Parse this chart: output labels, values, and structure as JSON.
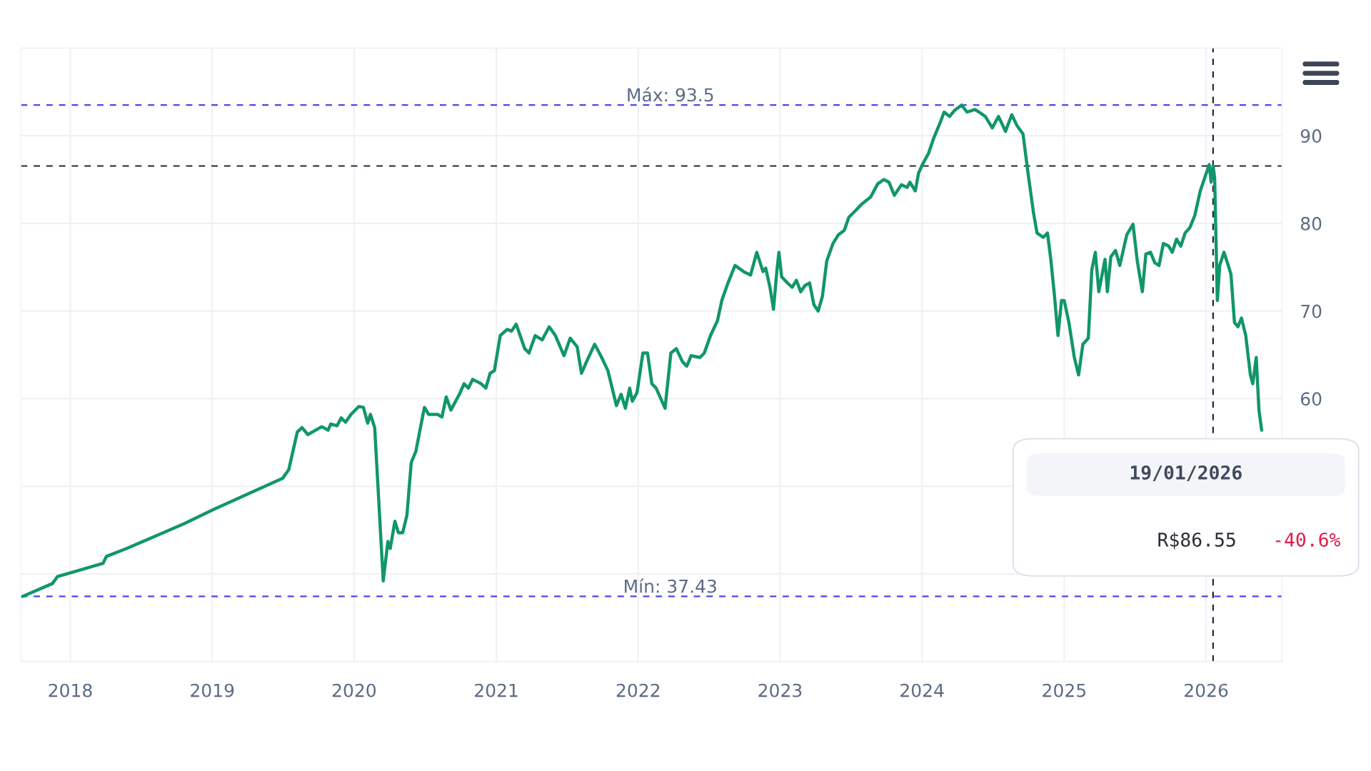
{
  "chart_data": {
    "type": "line",
    "x": [
      "2017-08-31",
      "2017-11-16",
      "2017-11-29",
      "2018-03-26",
      "2018-04-04",
      "2018-05-26",
      "2018-10-19",
      "2019-01-07",
      "2019-07-01",
      "2019-07-17",
      "2019-08-08",
      "2019-08-20",
      "2019-09-04",
      "2019-10-10",
      "2019-10-26",
      "2019-11-02",
      "2019-11-18",
      "2019-11-29",
      "2019-12-10",
      "2019-12-24",
      "2020-01-13",
      "2020-01-25",
      "2020-02-05",
      "2020-02-12",
      "2020-02-23",
      "2020-03-16",
      "2020-03-28",
      "2020-04-03",
      "2020-04-15",
      "2020-04-24",
      "2020-05-05",
      "2020-05-16",
      "2020-05-27",
      "2020-06-08",
      "2020-06-30",
      "2020-07-11",
      "2020-08-03",
      "2020-08-14",
      "2020-08-25",
      "2020-09-06",
      "2020-09-28",
      "2020-10-10",
      "2020-10-21",
      "2020-11-01",
      "2020-11-23",
      "2020-12-05",
      "2020-12-16",
      "2020-12-27",
      "2021-01-11",
      "2021-01-29",
      "2021-02-09",
      "2021-02-21",
      "2021-03-15",
      "2021-03-26",
      "2021-04-11",
      "2021-04-29",
      "2021-05-17",
      "2021-06-02",
      "2021-06-24",
      "2021-07-10",
      "2021-07-28",
      "2021-08-08",
      "2021-08-24",
      "2021-09-11",
      "2021-09-29",
      "2021-10-15",
      "2021-11-06",
      "2021-11-18",
      "2021-11-29",
      "2021-12-10",
      "2021-12-17",
      "2021-12-29",
      "2022-01-13",
      "2022-01-25",
      "2022-02-05",
      "2022-02-16",
      "2022-03-11",
      "2022-03-26",
      "2022-04-09",
      "2022-04-25",
      "2022-05-06",
      "2022-05-17",
      "2022-06-09",
      "2022-06-20",
      "2022-07-06",
      "2022-07-24",
      "2022-08-04",
      "2022-08-20",
      "2022-09-07",
      "2022-09-29",
      "2022-10-17",
      "2022-11-02",
      "2022-11-18",
      "2022-11-25",
      "2022-12-06",
      "2022-12-15",
      "2022-12-24",
      "2022-12-29",
      "2023-01-05",
      "2023-01-20",
      "2023-02-01",
      "2023-02-12",
      "2023-02-23",
      "2023-03-06",
      "2023-03-18",
      "2023-03-29",
      "2023-04-09",
      "2023-04-20",
      "2023-05-01",
      "2023-05-17",
      "2023-05-31",
      "2023-06-15",
      "2023-06-27",
      "2023-07-15",
      "2023-07-30",
      "2023-08-22",
      "2023-09-09",
      "2023-09-25",
      "2023-10-08",
      "2023-10-22",
      "2023-11-09",
      "2023-11-24",
      "2023-12-01",
      "2023-12-15",
      "2023-12-23",
      "2024-01-02",
      "2024-01-18",
      "2024-01-31",
      "2024-02-16",
      "2024-02-27",
      "2024-03-12",
      "2024-03-25",
      "2024-04-12",
      "2024-04-26",
      "2024-05-16",
      "2024-05-27",
      "2024-06-12",
      "2024-06-30",
      "2024-07-16",
      "2024-08-03",
      "2024-08-19",
      "2024-09-01",
      "2024-09-17",
      "2024-09-30",
      "2024-10-14",
      "2024-10-23",
      "2024-11-08",
      "2024-11-19",
      "2024-11-28",
      "2024-12-07",
      "2024-12-16",
      "2024-12-25",
      "2025-01-01",
      "2025-01-13",
      "2025-01-27",
      "2025-02-07",
      "2025-02-18",
      "2025-03-04",
      "2025-03-13",
      "2025-03-22",
      "2025-03-31",
      "2025-04-16",
      "2025-04-22",
      "2025-05-01",
      "2025-05-13",
      "2025-05-24",
      "2025-06-11",
      "2025-06-27",
      "2025-07-08",
      "2025-07-21",
      "2025-07-30",
      "2025-08-11",
      "2025-08-22",
      "2025-09-02",
      "2025-09-13",
      "2025-09-27",
      "2025-10-06",
      "2025-10-17",
      "2025-10-28",
      "2025-11-08",
      "2025-11-20",
      "2025-12-03",
      "2025-12-17",
      "2026-01-09",
      "2026-01-14",
      "2026-01-19",
      "2026-01-23",
      "2026-01-30",
      "2026-02-05",
      "2026-02-16",
      "2026-02-27",
      "2026-03-06",
      "2026-03-15",
      "2026-03-24",
      "2026-04-02",
      "2026-04-13",
      "2026-04-25",
      "2026-05-01",
      "2026-05-10",
      "2026-05-17",
      "2026-05-24"
    ],
    "series": [
      {
        "color": "#11966a",
        "values": [
          37.43,
          38.9,
          39.7,
          41.2,
          42.0,
          42.9,
          45.7,
          47.4,
          50.9,
          51.9,
          56.2,
          56.7,
          55.9,
          56.8,
          56.4,
          57.1,
          56.9,
          57.8,
          57.3,
          58.2,
          59.1,
          59.0,
          57.2,
          58.2,
          56.7,
          39.2,
          43.7,
          42.9,
          46.0,
          44.7,
          44.7,
          46.7,
          52.7,
          54.0,
          59.0,
          58.2,
          58.2,
          57.9,
          60.2,
          58.7,
          60.5,
          61.7,
          61.2,
          62.2,
          61.7,
          61.2,
          62.9,
          63.2,
          67.2,
          67.9,
          67.7,
          68.5,
          65.7,
          65.2,
          67.2,
          66.7,
          68.2,
          67.2,
          64.9,
          66.9,
          65.9,
          62.9,
          64.5,
          66.2,
          64.7,
          63.2,
          59.2,
          60.5,
          58.9,
          61.2,
          59.7,
          60.7,
          65.2,
          65.2,
          61.7,
          61.2,
          58.9,
          65.2,
          65.7,
          64.2,
          63.7,
          64.9,
          64.7,
          65.2,
          67.2,
          68.9,
          71.2,
          73.2,
          75.2,
          74.5,
          74.1,
          76.7,
          74.5,
          74.9,
          72.7,
          70.2,
          74.7,
          76.7,
          73.9,
          73.2,
          72.7,
          73.5,
          72.2,
          72.9,
          73.2,
          70.7,
          70.0,
          71.7,
          75.7,
          77.7,
          78.7,
          79.2,
          80.7,
          81.5,
          82.2,
          83.0,
          84.5,
          85.0,
          84.7,
          83.2,
          84.4,
          84.1,
          84.7,
          83.7,
          85.7,
          86.7,
          88.0,
          89.7,
          91.4,
          92.7,
          92.2,
          92.9,
          93.5,
          92.7,
          93.0,
          92.7,
          92.2,
          90.9,
          92.2,
          90.5,
          92.4,
          91.2,
          90.2,
          85.7,
          81.2,
          78.9,
          78.4,
          78.9,
          75.7,
          71.7,
          67.2,
          71.2,
          71.2,
          68.7,
          64.7,
          62.7,
          66.2,
          66.9,
          74.7,
          76.7,
          72.2,
          75.9,
          72.2,
          76.2,
          76.9,
          75.2,
          78.7,
          79.9,
          75.7,
          72.2,
          76.5,
          76.7,
          75.5,
          75.2,
          77.7,
          77.4,
          76.7,
          78.2,
          77.4,
          78.9,
          79.5,
          80.9,
          83.7,
          86.7,
          84.7,
          86.55,
          85.2,
          71.2,
          75.2,
          76.7,
          75.2,
          74.2,
          68.7,
          68.2,
          69.2,
          67.2,
          62.7,
          61.7,
          64.7,
          58.7,
          56.4
        ]
      }
    ],
    "xlim": [
      "2017-08-27",
      "2026-07-15"
    ],
    "xticks": [
      "2018",
      "2019",
      "2020",
      "2021",
      "2022",
      "2023",
      "2024",
      "2025",
      "2026"
    ],
    "ylim": [
      30,
      100
    ],
    "yticks": [
      {
        "value": 40,
        "label": null
      },
      {
        "value": 50,
        "label": null
      },
      60,
      70,
      80,
      90
    ],
    "grid": true,
    "line_style": "solid",
    "marker": "none",
    "ref_lines": [
      {
        "axis": "y",
        "value": 93.5,
        "label": "Máx: 93.5",
        "color": "#4f46e5",
        "line_style": "dashed"
      },
      {
        "axis": "y",
        "value": 37.43,
        "label": "Mín: 37.43",
        "color": "#4f46e5",
        "line_style": "dashed"
      },
      {
        "axis": "y",
        "value": 86.55,
        "color": "#1f2937",
        "line_style": "dashed"
      },
      {
        "axis": "x",
        "value": "2026-01-19",
        "color": "#1f2937",
        "line_style": "dashed"
      }
    ],
    "annotations": [
      "19/01/2026",
      "R$86.55",
      "-40.6%"
    ]
  }
}
